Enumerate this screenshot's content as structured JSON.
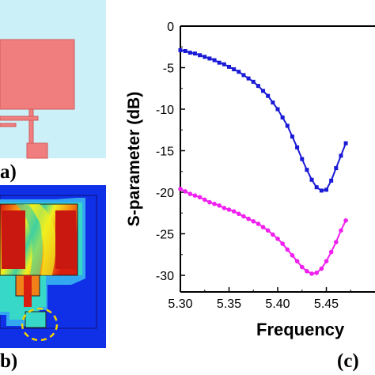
{
  "panels": {
    "a": {
      "label": "a)"
    },
    "b": {
      "label": "b)"
    },
    "c": {
      "label": "(c)"
    }
  },
  "colors": {
    "antenna_bg": "#ccf0f8",
    "patch": "#f07e7e",
    "patch_outline": "#d05c5c",
    "field_bg": "#1030e8",
    "highlight_circle": "#f2d200",
    "series_blue": "#1a1ad6",
    "series_magenta": "#f020f0"
  },
  "chart_data": {
    "type": "line",
    "xlabel": "Frequency",
    "ylabel": "S-parameter (dB)",
    "xlim": [
      5.3,
      5.5
    ],
    "ylim": [
      -32,
      0
    ],
    "xticks": [
      "5.30",
      "5.35",
      "5.40",
      "5.45"
    ],
    "yticks": [
      "0",
      "-5",
      "-10",
      "-15",
      "-20",
      "-25",
      "-30"
    ],
    "grid": false,
    "series": [
      {
        "color": "#1a1ad6",
        "marker": "square",
        "x": [
          5.3,
          5.305,
          5.31,
          5.315,
          5.32,
          5.325,
          5.33,
          5.335,
          5.34,
          5.345,
          5.35,
          5.355,
          5.36,
          5.365,
          5.37,
          5.375,
          5.38,
          5.385,
          5.39,
          5.395,
          5.4,
          5.405,
          5.41,
          5.415,
          5.42,
          5.425,
          5.43,
          5.435,
          5.44,
          5.445,
          5.45,
          5.455,
          5.46,
          5.465,
          5.47
        ],
        "values": [
          -2.9,
          -3.0,
          -3.2,
          -3.3,
          -3.5,
          -3.7,
          -3.9,
          -4.1,
          -4.4,
          -4.6,
          -4.9,
          -5.2,
          -5.5,
          -5.9,
          -6.3,
          -6.7,
          -7.2,
          -7.8,
          -8.4,
          -9.2,
          -10.0,
          -11.0,
          -12.0,
          -13.3,
          -14.6,
          -16.0,
          -17.3,
          -18.5,
          -19.4,
          -19.8,
          -19.7,
          -18.6,
          -17.1,
          -15.6,
          -14.1
        ]
      },
      {
        "color": "#f020f0",
        "marker": "circle",
        "x": [
          5.3,
          5.305,
          5.31,
          5.315,
          5.32,
          5.325,
          5.33,
          5.335,
          5.34,
          5.345,
          5.35,
          5.355,
          5.36,
          5.365,
          5.37,
          5.375,
          5.38,
          5.385,
          5.39,
          5.395,
          5.4,
          5.405,
          5.41,
          5.415,
          5.42,
          5.425,
          5.43,
          5.435,
          5.44,
          5.445,
          5.45,
          5.455,
          5.46,
          5.465,
          5.47
        ],
        "values": [
          -19.6,
          -19.9,
          -20.2,
          -20.4,
          -20.6,
          -20.9,
          -21.2,
          -21.4,
          -21.6,
          -21.9,
          -22.1,
          -22.3,
          -22.6,
          -22.9,
          -23.2,
          -23.5,
          -23.8,
          -24.2,
          -24.6,
          -25.1,
          -25.6,
          -26.2,
          -26.9,
          -27.6,
          -28.3,
          -29.0,
          -29.5,
          -29.8,
          -29.7,
          -29.2,
          -28.3,
          -27.2,
          -26.0,
          -24.6,
          -23.4
        ]
      }
    ]
  }
}
